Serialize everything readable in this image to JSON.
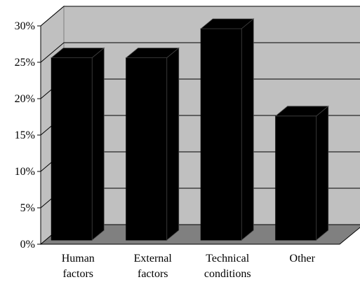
{
  "chart_data": {
    "type": "bar",
    "style": "3d",
    "categories": [
      [
        "Human",
        "factors"
      ],
      [
        "External",
        "factors"
      ],
      [
        "Technical",
        "conditions"
      ],
      [
        "Other"
      ]
    ],
    "values": [
      26,
      26,
      30,
      18
    ],
    "ylim": [
      0,
      30
    ],
    "yticks": [
      "0%",
      "5%",
      "10%",
      "15%",
      "20%",
      "25%",
      "30%"
    ],
    "ytick_values": [
      0,
      5,
      10,
      15,
      20,
      25,
      30
    ],
    "grid": true,
    "legend": "none",
    "colors": {
      "bar": "#000000",
      "wall": "#c0c0c0",
      "floor": "#808080",
      "gridline": "#000000"
    }
  }
}
